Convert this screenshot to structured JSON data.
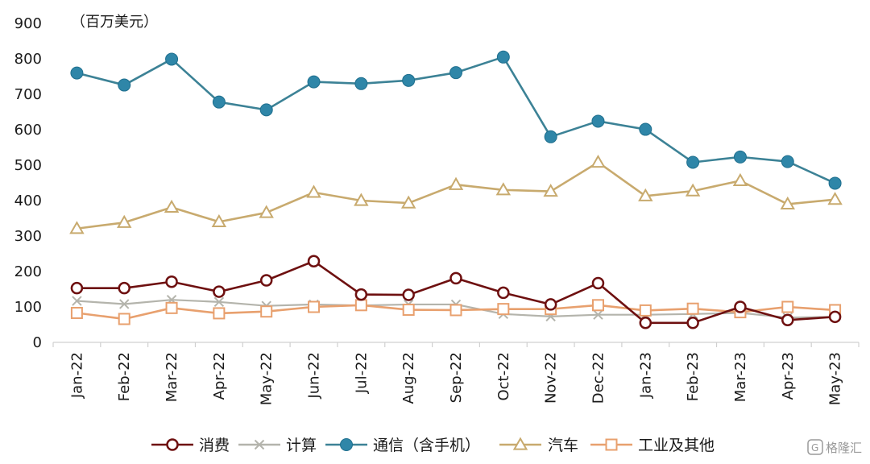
{
  "chart_data": {
    "type": "line",
    "unit_label": "（百万美元）",
    "categories": [
      "Jan-22",
      "Feb-22",
      "Mar-22",
      "Apr-22",
      "May-22",
      "Jun-22",
      "Jul-22",
      "Aug-22",
      "Sep-22",
      "Oct-22",
      "Nov-22",
      "Dec-22",
      "Jan-23",
      "Feb-23",
      "Mar-23",
      "Apr-23",
      "May-23"
    ],
    "ylim": [
      0,
      900
    ],
    "yticks": [
      0,
      100,
      200,
      300,
      400,
      500,
      600,
      700,
      800,
      900
    ],
    "grid": false,
    "legend_position": "bottom",
    "series": [
      {
        "name": "消费",
        "marker": "open-circle",
        "color": "#6e1010",
        "values": [
          153,
          153,
          171,
          143,
          175,
          229,
          135,
          134,
          181,
          140,
          107,
          167,
          55,
          55,
          100,
          63,
          72
        ]
      },
      {
        "name": "计算",
        "marker": "x",
        "color": "#b4b4ac",
        "values": [
          117,
          108,
          120,
          114,
          103,
          107,
          104,
          107,
          107,
          80,
          73,
          78,
          78,
          80,
          83,
          70,
          72
        ]
      },
      {
        "name": "通信（含手机）",
        "marker": "filled-circle",
        "color": "#3c8296",
        "marker_fill": "#2f86a8",
        "values": [
          760,
          726,
          799,
          678,
          656,
          735,
          730,
          739,
          761,
          805,
          580,
          624,
          601,
          508,
          523,
          510,
          449
        ]
      },
      {
        "name": "汽车",
        "marker": "open-triangle",
        "color": "#c8aa6e",
        "values": [
          321,
          338,
          381,
          340,
          366,
          423,
          400,
          393,
          445,
          430,
          426,
          508,
          413,
          427,
          456,
          390,
          403
        ]
      },
      {
        "name": "工业及其他",
        "marker": "open-square",
        "color": "#e8a06e",
        "values": [
          83,
          66,
          97,
          82,
          87,
          100,
          105,
          92,
          91,
          94,
          94,
          105,
          90,
          95,
          85,
          100,
          91
        ]
      }
    ]
  },
  "watermark": "格隆汇"
}
